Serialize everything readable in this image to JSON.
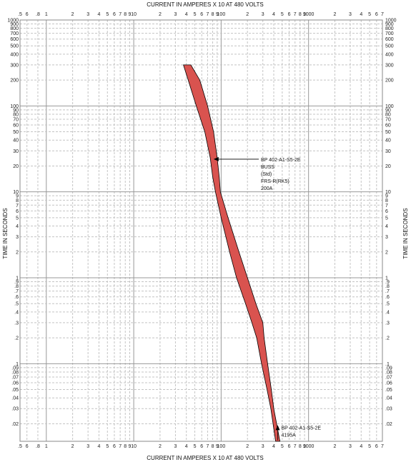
{
  "chart_data": {
    "type": "area",
    "x_scale": "log",
    "y_scale": "log",
    "xlabel_top": "CURRENT IN AMPERES X 10 AT 480 VOLTS",
    "xlabel_bottom": "CURRENT IN AMPERES X 10 AT 480 VOLTS",
    "ylabel_left": "TIME IN SECONDS",
    "ylabel_right": "TIME IN SECONDS",
    "xlim": [
      0.5,
      7000
    ],
    "ylim": [
      0.0125,
      1000
    ],
    "grid": true,
    "x_ticks": [
      {
        "value": 0.5,
        "label": ".5"
      },
      {
        "value": 0.6,
        "label": "6"
      },
      {
        "value": 0.8,
        "label": ".8"
      },
      {
        "value": 1,
        "label": "1"
      },
      {
        "value": 2,
        "label": "2"
      },
      {
        "value": 3,
        "label": "3"
      },
      {
        "value": 4,
        "label": "4"
      },
      {
        "value": 5,
        "label": "5"
      },
      {
        "value": 6,
        "label": "6"
      },
      {
        "value": 7,
        "label": "7"
      },
      {
        "value": 8,
        "label": "8"
      },
      {
        "value": 9,
        "label": "9"
      },
      {
        "value": 10,
        "label": "10"
      },
      {
        "value": 20,
        "label": "2"
      },
      {
        "value": 30,
        "label": "3"
      },
      {
        "value": 40,
        "label": "4"
      },
      {
        "value": 50,
        "label": "5"
      },
      {
        "value": 60,
        "label": "6"
      },
      {
        "value": 70,
        "label": "7"
      },
      {
        "value": 80,
        "label": "8"
      },
      {
        "value": 90,
        "label": "9"
      },
      {
        "value": 100,
        "label": "100"
      },
      {
        "value": 200,
        "label": "2"
      },
      {
        "value": 300,
        "label": "3"
      },
      {
        "value": 400,
        "label": "4"
      },
      {
        "value": 500,
        "label": "5"
      },
      {
        "value": 600,
        "label": "6"
      },
      {
        "value": 700,
        "label": "7"
      },
      {
        "value": 800,
        "label": "8"
      },
      {
        "value": 900,
        "label": "9"
      },
      {
        "value": 1000,
        "label": "1000"
      },
      {
        "value": 2000,
        "label": "2"
      },
      {
        "value": 3000,
        "label": "3"
      },
      {
        "value": 4000,
        "label": "4"
      },
      {
        "value": 5000,
        "label": "5"
      },
      {
        "value": 6000,
        "label": "6"
      },
      {
        "value": 7000,
        "label": "7"
      }
    ],
    "y_ticks": [
      {
        "value": 1000,
        "label": "1000"
      },
      {
        "value": 900,
        "label": "900"
      },
      {
        "value": 800,
        "label": "800"
      },
      {
        "value": 700,
        "label": "700"
      },
      {
        "value": 600,
        "label": "600"
      },
      {
        "value": 500,
        "label": "500"
      },
      {
        "value": 400,
        "label": "400"
      },
      {
        "value": 300,
        "label": "300"
      },
      {
        "value": 200,
        "label": "200"
      },
      {
        "value": 100,
        "label": "100"
      },
      {
        "value": 90,
        "label": "90"
      },
      {
        "value": 80,
        "label": "80"
      },
      {
        "value": 70,
        "label": "70"
      },
      {
        "value": 60,
        "label": "60"
      },
      {
        "value": 50,
        "label": "50"
      },
      {
        "value": 40,
        "label": "40"
      },
      {
        "value": 30,
        "label": "30"
      },
      {
        "value": 20,
        "label": "20"
      },
      {
        "value": 10,
        "label": "10"
      },
      {
        "value": 9,
        "label": "9"
      },
      {
        "value": 8,
        "label": "8"
      },
      {
        "value": 7,
        "label": "7"
      },
      {
        "value": 6,
        "label": "6"
      },
      {
        "value": 5,
        "label": "5"
      },
      {
        "value": 4,
        "label": "4"
      },
      {
        "value": 3,
        "label": "3"
      },
      {
        "value": 2,
        "label": "2"
      },
      {
        "value": 1,
        "label": "1"
      },
      {
        "value": 0.9,
        "label": ".9"
      },
      {
        "value": 0.8,
        "label": ".8"
      },
      {
        "value": 0.7,
        "label": ".7"
      },
      {
        "value": 0.6,
        "label": ".6"
      },
      {
        "value": 0.5,
        "label": ".5"
      },
      {
        "value": 0.4,
        "label": ".4"
      },
      {
        "value": 0.3,
        "label": ".3"
      },
      {
        "value": 0.2,
        "label": ".2"
      },
      {
        "value": 0.1,
        "label": ".1"
      },
      {
        "value": 0.09,
        "label": ".09"
      },
      {
        "value": 0.08,
        "label": ".08"
      },
      {
        "value": 0.07,
        "label": ".07"
      },
      {
        "value": 0.06,
        "label": ".06"
      },
      {
        "value": 0.05,
        "label": ".05"
      },
      {
        "value": 0.04,
        "label": ".04"
      },
      {
        "value": 0.03,
        "label": ".03"
      },
      {
        "value": 0.02,
        "label": ".02"
      }
    ],
    "series": [
      {
        "band": true,
        "color": "#d9534f",
        "stroke": "#000000",
        "min_curve": [
          [
            37,
            300
          ],
          [
            42,
            200
          ],
          [
            52,
            100
          ],
          [
            65,
            50
          ],
          [
            75,
            25
          ],
          [
            80,
            15
          ],
          [
            86,
            10
          ],
          [
            100,
            5
          ],
          [
            125,
            2
          ],
          [
            150,
            1
          ],
          [
            190,
            0.5
          ],
          [
            225,
            0.3
          ],
          [
            255,
            0.2
          ],
          [
            290,
            0.1
          ],
          [
            335,
            0.05
          ],
          [
            370,
            0.03
          ],
          [
            420,
            0.0125
          ]
        ],
        "max_curve": [
          [
            45,
            300
          ],
          [
            57,
            200
          ],
          [
            70,
            100
          ],
          [
            82,
            50
          ],
          [
            90,
            25
          ],
          [
            95,
            15
          ],
          [
            98,
            10
          ],
          [
            120,
            5
          ],
          [
            160,
            2
          ],
          [
            200,
            1
          ],
          [
            250,
            0.5
          ],
          [
            300,
            0.3
          ],
          [
            310,
            0.2
          ],
          [
            340,
            0.1
          ],
          [
            375,
            0.05
          ],
          [
            400,
            0.03
          ],
          [
            470,
            0.0125
          ]
        ]
      }
    ],
    "annotations": [
      {
        "lines": [
          "BP 402-A1-S5-2E",
          "BUSS",
          "(Std)",
          "FRS-R(RK5)",
          "200A"
        ],
        "arrow_to": [
          82,
          24
        ]
      },
      {
        "lines": [
          "BP 402-A1-S5-2E",
          "4195A"
        ],
        "arrow_to": [
          419.5,
          0.0175
        ]
      }
    ]
  }
}
